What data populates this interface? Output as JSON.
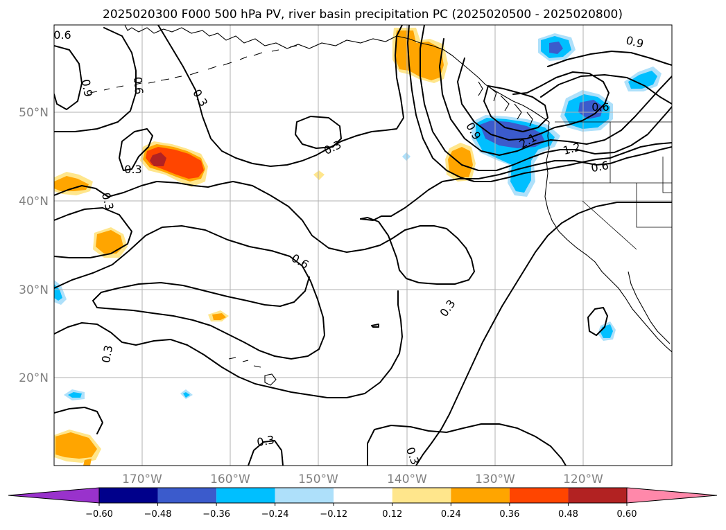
{
  "title": "2025020300 F000 500 hPa PV, river basin precipitation PC (2025020500 - 2025020800)",
  "lon_labels": [
    "170°W",
    "160°W",
    "150°W",
    "140°W",
    "130°W",
    "120°W"
  ],
  "lat_labels": [
    "50°N",
    "40°N",
    "30°N",
    "20°N"
  ],
  "colorbar": {
    "ticks": [
      "−0.60",
      "−0.48",
      "−0.36",
      "−0.24",
      "−0.12",
      "0.12",
      "0.24",
      "0.36",
      "0.48",
      "0.60"
    ],
    "colors": [
      "#9932cc",
      "#00008b",
      "#3b5bcc",
      "#00bfff",
      "#aee0fa",
      "#ffffff",
      "#ffe68c",
      "#ffa500",
      "#ff4500",
      "#b22222",
      "#ff88aa"
    ]
  },
  "contour_labels": [
    "0.6",
    "0.9",
    "0.6",
    "0.3",
    "0.3",
    "0.3",
    "0.3",
    "0.9",
    "2.1",
    "1.2",
    "0.6",
    "0.6",
    "0.9",
    "0.6",
    "0.3",
    "0.3",
    "0.3",
    "0.3"
  ],
  "shading_colors": {
    "positive_weak": "#ffe68c",
    "positive_mid": "#ffa500",
    "positive_strong": "#ff4500",
    "positive_max": "#b22222",
    "negative_weak": "#aee0fa",
    "negative_mid": "#00bfff",
    "negative_strong": "#3b5bcc"
  }
}
